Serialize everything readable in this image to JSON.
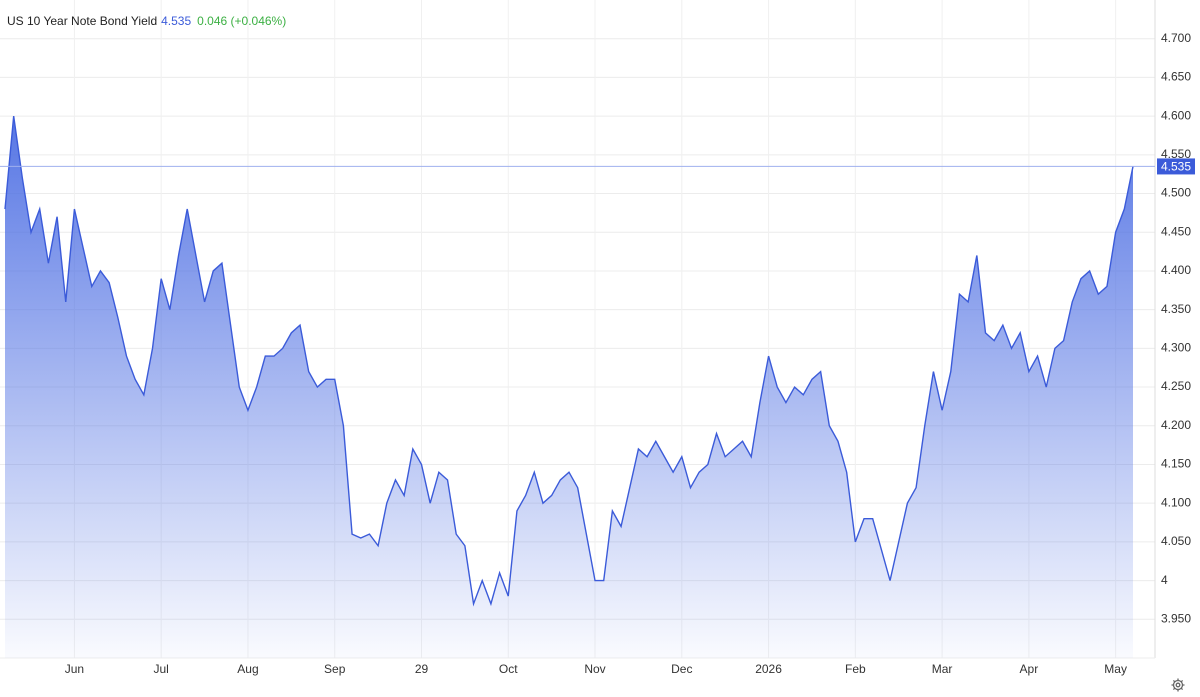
{
  "chart_data": {
    "type": "area",
    "title": "US 10 Year Note Bond Yield",
    "last_value": 4.535,
    "change": "0.046 (+0.046%)",
    "categories": [
      null,
      null,
      null,
      null,
      null,
      null,
      null,
      null,
      "Jun",
      null,
      null,
      null,
      null,
      null,
      null,
      null,
      null,
      null,
      "Jul",
      null,
      null,
      null,
      null,
      null,
      null,
      null,
      null,
      null,
      "Aug",
      null,
      null,
      null,
      null,
      null,
      null,
      null,
      null,
      null,
      "Sep",
      null,
      null,
      null,
      null,
      null,
      null,
      null,
      null,
      null,
      "29",
      null,
      null,
      null,
      null,
      null,
      null,
      null,
      null,
      null,
      "Oct",
      null,
      null,
      null,
      null,
      null,
      null,
      null,
      null,
      null,
      "Nov",
      null,
      null,
      null,
      null,
      null,
      null,
      null,
      null,
      null,
      "Dec",
      null,
      null,
      null,
      null,
      null,
      null,
      null,
      null,
      null,
      "2026",
      null,
      null,
      null,
      null,
      null,
      null,
      null,
      null,
      null,
      "Feb",
      null,
      null,
      null,
      null,
      null,
      null,
      null,
      null,
      null,
      "Mar",
      null,
      null,
      null,
      null,
      null,
      null,
      null,
      null,
      null,
      "Apr",
      null,
      null,
      null,
      null,
      null,
      null,
      null,
      null,
      null,
      "May",
      null,
      null
    ],
    "values": [
      4.48,
      4.6,
      4.52,
      4.45,
      4.48,
      4.41,
      4.47,
      4.36,
      4.48,
      4.43,
      4.38,
      4.4,
      4.385,
      4.34,
      4.29,
      4.26,
      4.24,
      4.3,
      4.39,
      4.35,
      4.42,
      4.48,
      4.42,
      4.36,
      4.4,
      4.41,
      4.33,
      4.25,
      4.22,
      4.25,
      4.29,
      4.29,
      4.3,
      4.32,
      4.33,
      4.27,
      4.25,
      4.26,
      4.26,
      4.2,
      4.06,
      4.055,
      4.06,
      4.045,
      4.1,
      4.13,
      4.11,
      4.17,
      4.15,
      4.1,
      4.14,
      4.13,
      4.06,
      4.045,
      3.97,
      4.0,
      3.97,
      4.01,
      3.98,
      4.09,
      4.11,
      4.14,
      4.1,
      4.11,
      4.13,
      4.14,
      4.12,
      4.06,
      4.0,
      4.0,
      4.09,
      4.07,
      4.12,
      4.17,
      4.16,
      4.18,
      4.16,
      4.14,
      4.16,
      4.12,
      4.14,
      4.15,
      4.19,
      4.16,
      4.17,
      4.18,
      4.16,
      4.23,
      4.29,
      4.25,
      4.23,
      4.25,
      4.24,
      4.26,
      4.27,
      4.2,
      4.18,
      4.14,
      4.05,
      4.08,
      4.08,
      4.04,
      4.0,
      4.05,
      4.1,
      4.12,
      4.2,
      4.27,
      4.22,
      4.27,
      4.37,
      4.36,
      4.42,
      4.32,
      4.31,
      4.33,
      4.3,
      4.32,
      4.27,
      4.29,
      4.25,
      4.3,
      4.31,
      4.36,
      4.39,
      4.4,
      4.37,
      4.38,
      4.45,
      4.48,
      4.535
    ],
    "color": "#3b5bd9",
    "ylim": [
      3.9,
      4.75
    ],
    "yticks": [
      {
        "value": 3.95,
        "label": "3.950"
      },
      4,
      {
        "value": 4.05,
        "label": "4.050"
      },
      {
        "value": 4.1,
        "label": "4.100"
      },
      {
        "value": 4.15,
        "label": "4.150"
      },
      {
        "value": 4.2,
        "label": "4.200"
      },
      {
        "value": 4.25,
        "label": "4.250"
      },
      {
        "value": 4.3,
        "label": "4.300"
      },
      {
        "value": 4.35,
        "label": "4.350"
      },
      {
        "value": 4.4,
        "label": "4.400"
      },
      {
        "value": 4.45,
        "label": "4.450"
      },
      {
        "value": 4.5,
        "label": "4.500"
      },
      {
        "value": 4.55,
        "label": "4.550"
      },
      {
        "value": 4.6,
        "label": "4.600"
      },
      {
        "value": 4.65,
        "label": "4.650"
      },
      {
        "value": 4.7,
        "label": "4.700"
      }
    ],
    "grid": true
  }
}
